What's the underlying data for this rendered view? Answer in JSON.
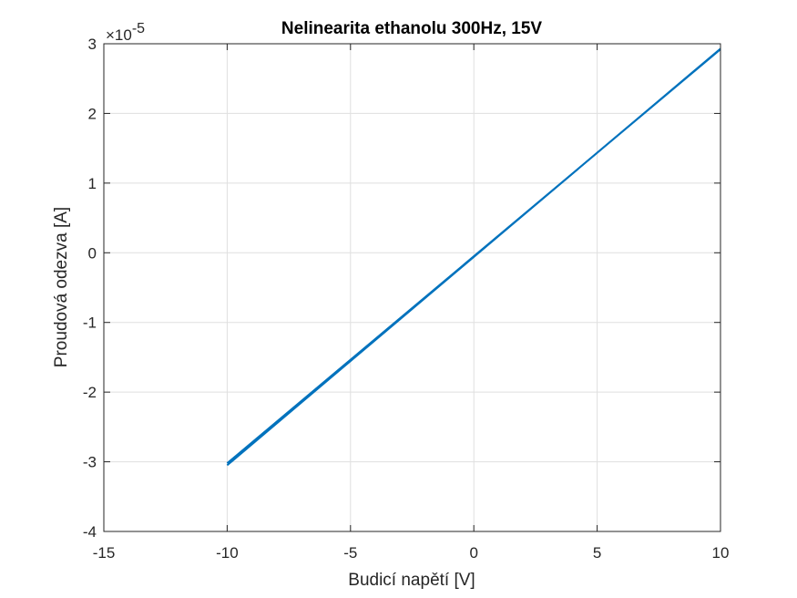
{
  "chart_data": {
    "type": "line",
    "title": "Nelinearita ethanolu 300Hz, 15V",
    "xlabel": "Budicí napětí [V]",
    "ylabel": "Proudová odezva [A]",
    "xlim": [
      -15,
      10
    ],
    "ylim": [
      -4e-05,
      3e-05
    ],
    "y_exponent_label": "×10",
    "y_exponent_power": "-5",
    "grid": true,
    "legend": "none",
    "line_color": "#0072BD",
    "x_ticks": [
      -15,
      -10,
      -5,
      0,
      5,
      10
    ],
    "x_tick_labels": [
      "-15",
      "-10",
      "-5",
      "0",
      "5",
      "10"
    ],
    "y_ticks": [
      -4,
      -3,
      -2,
      -1,
      0,
      1,
      2,
      3
    ],
    "y_tick_labels": [
      "-4",
      "-3",
      "-2",
      "-1",
      "0",
      "1",
      "2",
      "3"
    ],
    "series": [
      {
        "x": [
          -10,
          10
        ],
        "y": [
          -3.05e-05,
          2.93e-05
        ]
      },
      {
        "x": [
          10,
          -10
        ],
        "y": [
          2.92e-05,
          -3.02e-05
        ]
      }
    ]
  }
}
